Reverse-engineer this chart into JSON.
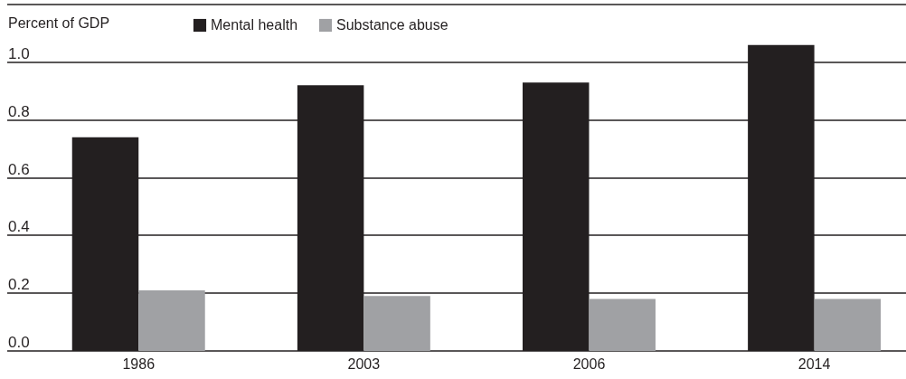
{
  "chart_data": {
    "type": "bar",
    "ylabel": "Percent of GDP",
    "categories": [
      "1986",
      "2003",
      "2006",
      "2014"
    ],
    "series": [
      {
        "name": "Mental health",
        "color": "#231f20",
        "values": [
          0.74,
          0.92,
          0.93,
          1.06
        ]
      },
      {
        "name": "Substance abuse",
        "color": "#a0a1a4",
        "values": [
          0.21,
          0.19,
          0.18,
          0.18
        ]
      }
    ],
    "ylim": [
      0,
      1.2
    ],
    "yticks": [
      {
        "value": 0,
        "label": "0.0"
      },
      0.2,
      0.4,
      0.6,
      0.8,
      {
        "value": 1,
        "label": "1.0"
      },
      {
        "value": 1.2,
        "label": null
      }
    ],
    "grid": "y",
    "legend": "top"
  }
}
